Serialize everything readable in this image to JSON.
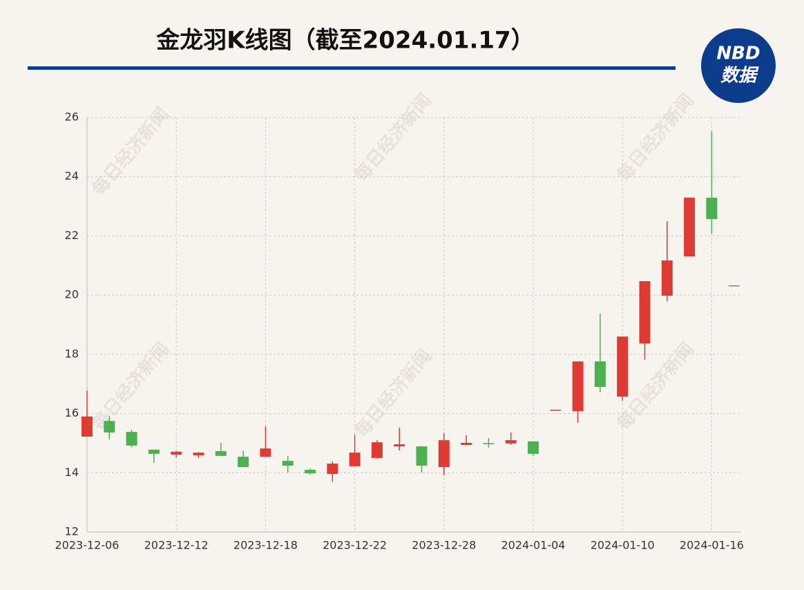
{
  "chart_data": {
    "type": "candlestick",
    "title": "金龙羽K线图（截至2024.01.17）",
    "logo": {
      "line1": "NBD",
      "line2": "数据"
    },
    "watermark": "每日经济新闻",
    "categories": [
      "2023-12-06",
      null,
      null,
      null,
      "2023-12-12",
      null,
      null,
      null,
      "2023-12-18",
      null,
      null,
      null,
      "2023-12-22",
      null,
      null,
      null,
      "2023-12-28",
      null,
      null,
      null,
      "2024-01-04",
      null,
      null,
      null,
      "2024-01-10",
      null,
      null,
      null,
      "2024-01-16",
      null
    ],
    "open": [
      15.22,
      15.75,
      15.38,
      14.78,
      14.61,
      14.59,
      14.73,
      14.54,
      14.54,
      14.4,
      14.1,
      13.96,
      14.22,
      14.5,
      14.89,
      14.89,
      14.19,
      14.94,
      15.0,
      14.99,
      15.06,
      16.13,
      16.08,
      17.76,
      16.57,
      18.37,
      19.98,
      21.31,
      23.29,
      20.33
    ],
    "high": [
      16.78,
      15.92,
      15.45,
      14.78,
      14.73,
      14.7,
      15.01,
      14.75,
      15.57,
      14.57,
      14.15,
      14.38,
      15.29,
      15.1,
      15.52,
      14.89,
      15.34,
      15.27,
      15.17,
      15.36,
      15.06,
      16.13,
      17.76,
      19.37,
      18.6,
      20.47,
      22.5,
      23.29,
      25.53,
      20.33
    ],
    "low": [
      15.22,
      15.13,
      14.87,
      14.33,
      14.52,
      14.5,
      14.57,
      14.19,
      14.54,
      14.01,
      13.94,
      13.7,
      14.22,
      14.47,
      14.75,
      14.01,
      13.91,
      14.92,
      14.85,
      14.94,
      14.57,
      16.13,
      15.69,
      16.71,
      16.43,
      17.81,
      19.79,
      21.31,
      22.08,
      20.33
    ],
    "close": [
      15.9,
      15.36,
      14.92,
      14.64,
      14.71,
      14.68,
      14.57,
      14.19,
      14.82,
      14.24,
      13.98,
      14.31,
      14.68,
      15.03,
      14.96,
      14.24,
      15.1,
      15.01,
      14.97,
      15.1,
      14.64,
      16.13,
      17.76,
      16.9,
      18.6,
      20.47,
      21.17,
      23.29,
      22.57,
      20.33
    ],
    "up_color": "#dd3c35",
    "down_color": "#4caf50",
    "ylim": [
      12,
      26
    ],
    "yticks": [
      12,
      14,
      16,
      18,
      20,
      22,
      24,
      26
    ],
    "grid": true
  }
}
